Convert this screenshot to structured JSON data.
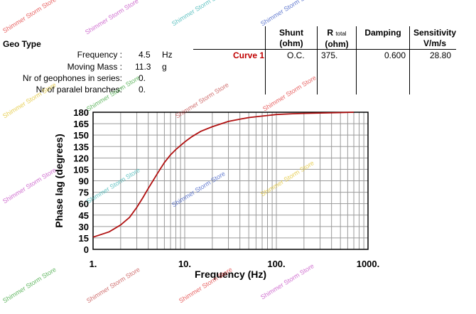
{
  "geo": {
    "title": "Geo Type",
    "params": [
      {
        "label": "Frequency :",
        "value": "4.5",
        "unit": "Hz"
      },
      {
        "label": "Moving Mass :",
        "value": "11.3",
        "unit": "g"
      },
      {
        "label": "Nr of geophones in series:",
        "value": "0.",
        "unit": ""
      },
      {
        "label": "Nr of paralel branches:",
        "value": "0.",
        "unit": ""
      }
    ]
  },
  "table": {
    "shunt_header": "Shunt",
    "shunt_unit": "(ohm)",
    "rtotal_header_r": "R",
    "rtotal_header_sub": "total",
    "rtotal_unit": "(ohm)",
    "damping_header": "Damping",
    "sensitivity_header": "Sensitivity",
    "sensitivity_unit": "V/m/s",
    "row": {
      "curve": "Curve 1",
      "shunt": "O.C.",
      "rtotal": "375.",
      "damping": "0.600",
      "sensitivity": "28.80"
    }
  },
  "chart_data": {
    "type": "line",
    "x_scale": "log",
    "xlabel": "Frequency (Hz)",
    "ylabel": "Phase lag (degrees)",
    "xlim": [
      1,
      1000
    ],
    "ylim": [
      0,
      180
    ],
    "x_ticks": [
      1,
      10,
      100,
      1000
    ],
    "x_tick_labels": [
      "1.",
      "10.",
      "100.",
      "1000."
    ],
    "y_ticks": [
      0,
      15,
      30,
      45,
      60,
      75,
      90,
      105,
      120,
      135,
      150,
      165,
      180
    ],
    "grid": true,
    "series": [
      {
        "name": "Curve 1",
        "color": "#b01010",
        "x": [
          1,
          1.5,
          2,
          2.5,
          3,
          3.5,
          4,
          4.5,
          5,
          6,
          7,
          8,
          10,
          12,
          15,
          20,
          30,
          40,
          50,
          70,
          100,
          150,
          200,
          300,
          500,
          700
        ],
        "y": [
          16,
          23,
          32,
          42,
          55,
          68,
          80,
          90,
          99,
          114,
          124,
          131,
          141,
          148,
          155,
          161,
          168,
          171,
          173,
          175,
          177,
          178,
          178.5,
          179,
          179.5,
          180
        ]
      }
    ]
  },
  "watermark": {
    "text": "Shimmer Storm Store",
    "colors": [
      "#e03030",
      "#c040c0",
      "#30b0b0",
      "#3050c0",
      "#e0c020",
      "#30a030",
      "#c04040"
    ]
  }
}
